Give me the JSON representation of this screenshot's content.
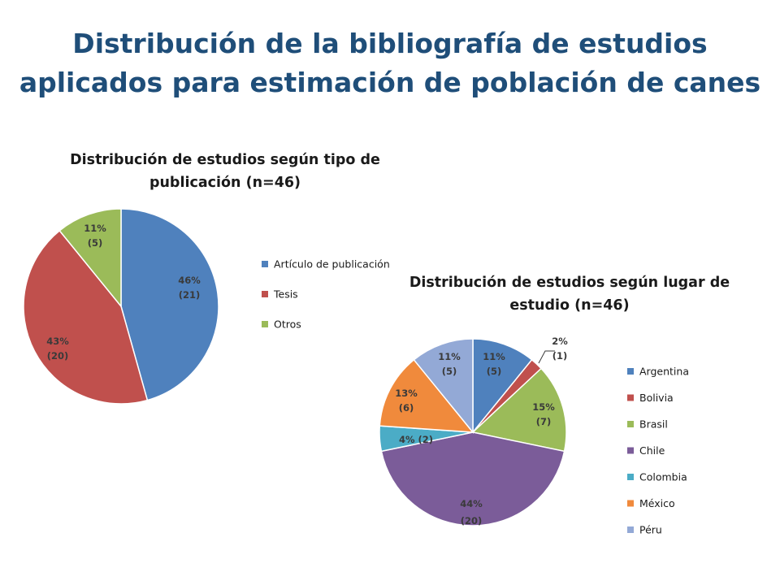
{
  "page": {
    "title_line1": "Distribución de la bibliografía de estudios",
    "title_line2": "aplicados para estimación de población de canes"
  },
  "chart_data": [
    {
      "type": "pie",
      "title_line1": "Distribución de estudios según tipo de",
      "title_line2": "publicación (n=46)",
      "legend_position": "right",
      "slices": [
        {
          "name": "Artículo de publicación",
          "count": 21,
          "percent": "46%",
          "count_label": "(21)",
          "color": "#4f81bd"
        },
        {
          "name": "Tesis",
          "count": 20,
          "percent": "43%",
          "count_label": "(20)",
          "color": "#c0504d"
        },
        {
          "name": "Otros",
          "count": 5,
          "percent": "11%",
          "count_label": "(5)",
          "color": "#9bbb59"
        }
      ]
    },
    {
      "type": "pie",
      "title_line1": "Distribución de estudios según lugar de",
      "title_line2": "estudio (n=46)",
      "legend_position": "right",
      "slices": [
        {
          "name": "Argentina",
          "count": 5,
          "percent": "11%",
          "count_label": "(5)",
          "color": "#4f81bd"
        },
        {
          "name": "Bolivia",
          "count": 1,
          "percent": "2%",
          "count_label": "(1)",
          "color": "#c0504d"
        },
        {
          "name": "Brasil",
          "count": 7,
          "percent": "15%",
          "count_label": "(7)",
          "color": "#9bbb59"
        },
        {
          "name": "Chile",
          "count": 20,
          "percent": "44%",
          "count_label": "(20)",
          "color": "#7b5c99"
        },
        {
          "name": "Colombia",
          "count": 2,
          "percent": "4%",
          "count_label": "(2)",
          "color": "#4bacc6"
        },
        {
          "name": "México",
          "count": 6,
          "percent": "13%",
          "count_label": "(6)",
          "color": "#f08a3c"
        },
        {
          "name": "Péru",
          "count": 5,
          "percent": "11%",
          "count_label": "(5)",
          "color": "#93a9d6"
        }
      ]
    }
  ]
}
